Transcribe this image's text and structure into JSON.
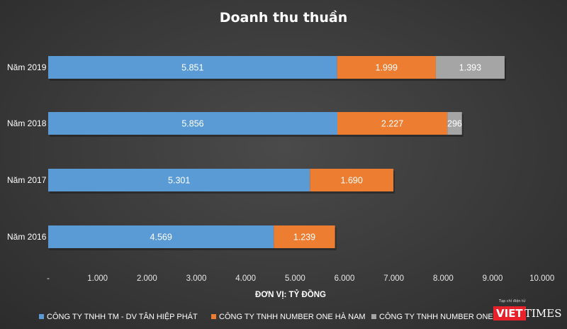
{
  "chart_data": {
    "type": "bar",
    "orientation": "horizontal",
    "stacked": true,
    "title": "Doanh thu thuần",
    "xlabel": "ĐƠN VỊ: TỶ ĐỒNG",
    "categories": [
      "Năm 2016",
      "Năm 2017",
      "Năm 2018",
      "Năm 2019"
    ],
    "series": [
      {
        "name": "CÔNG TY TNHH TM - DV TÂN HIỆP PHÁT",
        "color": "#5b9bd5",
        "values": [
          4569,
          5301,
          5856,
          5851
        ],
        "labels": [
          "4.569",
          "5.301",
          "5.856",
          "5.851"
        ]
      },
      {
        "name": "CÔNG TY TNHH NUMBER ONE HÀ NAM",
        "color": "#ed7d31",
        "values": [
          1239,
          1690,
          2227,
          1999
        ],
        "labels": [
          "1.239",
          "1.690",
          "2.227",
          "1.999"
        ]
      },
      {
        "name": "CÔNG TY TNHH NUMBER ONE CHU LAI",
        "color": "#a5a5a5",
        "values": [
          0,
          0,
          296,
          1393
        ],
        "labels": [
          "",
          "",
          "296",
          "1.393"
        ]
      }
    ],
    "xlim": [
      0,
      10000
    ],
    "xticks": [
      0,
      1000,
      2000,
      3000,
      4000,
      5000,
      6000,
      7000,
      8000,
      9000,
      10000
    ],
    "xtick_labels": [
      "-",
      "1.000",
      "2.000",
      "3.000",
      "4.000",
      "5.000",
      "6.000",
      "7.000",
      "8.000",
      "9.000",
      "10.000"
    ],
    "grid": false,
    "legend_position": "bottom"
  },
  "logo": {
    "tagline": "Tạp chí điện tử",
    "part1": "VIET",
    "part2": "TIMES"
  }
}
